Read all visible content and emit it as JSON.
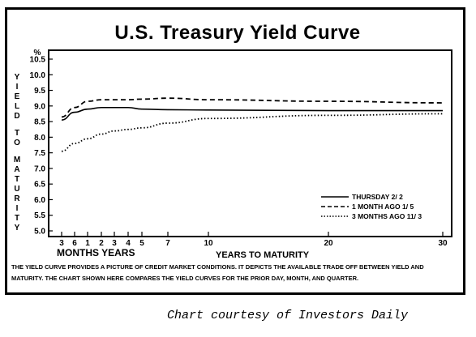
{
  "chart_data": {
    "type": "line",
    "title": "U.S. Treasury Yield Curve",
    "xlabel": "YEARS TO MATURITY",
    "xlabel_units": "MONTHS YEARS",
    "ylabel": "YIELD TO MATURITY",
    "yunit": "%",
    "ylim": [
      5.0,
      10.75
    ],
    "yticks": [
      "5.0",
      "5.5",
      "6.0",
      "6.5",
      "7.0",
      "7.5",
      "8.0",
      "8.5",
      "9.0",
      "9.5",
      "10.0",
      "10.5"
    ],
    "xticks": [
      "3",
      "6",
      "1",
      "2",
      "3",
      "4",
      "5",
      "7",
      "10",
      "20",
      "30"
    ],
    "grid": false,
    "legend_position": "bottom-right",
    "series": [
      {
        "name": "THURSDAY 2/ 2",
        "style": "solid",
        "x": [
          "3 mo",
          "6 mo",
          "1 yr",
          "2 yr",
          "3 yr",
          "4 yr",
          "5 yr",
          "7 yr",
          "10 yr",
          "20 yr",
          "30 yr"
        ],
        "values": [
          8.55,
          8.8,
          8.9,
          8.95,
          8.95,
          8.95,
          8.9,
          8.88,
          8.87,
          8.85,
          8.85
        ]
      },
      {
        "name": "1 MONTH AGO 1/ 5",
        "style": "dashed",
        "x": [
          "3 mo",
          "6 mo",
          "1 yr",
          "2 yr",
          "3 yr",
          "4 yr",
          "5 yr",
          "7 yr",
          "10 yr",
          "20 yr",
          "30 yr"
        ],
        "values": [
          8.65,
          8.95,
          9.15,
          9.2,
          9.2,
          9.2,
          9.22,
          9.25,
          9.2,
          9.15,
          9.1
        ]
      },
      {
        "name": "3 MONTHS AGO 11/ 3",
        "style": "dotted",
        "x": [
          "3 mo",
          "6 mo",
          "1 yr",
          "2 yr",
          "3 yr",
          "4 yr",
          "5 yr",
          "7 yr",
          "10 yr",
          "20 yr",
          "30 yr"
        ],
        "values": [
          7.55,
          7.8,
          7.95,
          8.1,
          8.2,
          8.25,
          8.3,
          8.45,
          8.6,
          8.7,
          8.75
        ]
      }
    ]
  },
  "caption": "THE YIELD CURVE PROVIDES A PICTURE OF CREDIT MARKET CONDITIONS. IT DEPICTS THE AVAILABLE TRADE OFF BETWEEN YIELD AND MATURITY. THE CHART SHOWN HERE COMPARES THE YIELD CURVES FOR THE PRIOR DAY, MONTH, AND QUARTER.",
  "credit": "Chart courtesy of Investors Daily"
}
